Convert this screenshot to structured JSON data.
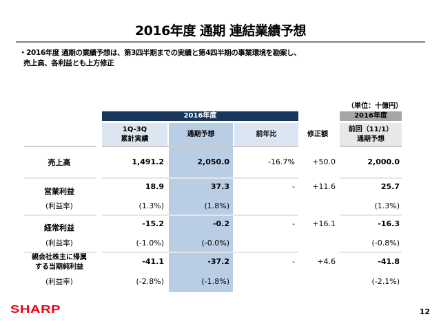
{
  "title": "2016年度 通期 連結業績予想",
  "bullet": {
    "line1": "・2016年度 通期の業績予想は、第3四半期までの実績と第4四半期の事業環境を勘案し、",
    "line2": "売上高、各利益とも上方修正"
  },
  "table": {
    "unit": "（単位：十億円）",
    "group_header": "2016年度",
    "prev_group_header": "2016年度",
    "columns": {
      "q1q3_line1": "1Q-3Q",
      "q1q3_line2": "累計実績",
      "full_year": "通期予想",
      "yoy": "前年比",
      "revision": "修正額",
      "prev_line1": "前回（11/1）",
      "prev_line2": "通期予想"
    },
    "rows": [
      {
        "label": "売上高",
        "q1q3": "1,491.2",
        "full": "2,050.0",
        "yoy": "-16.7%",
        "rev": "+50.0",
        "prev": "2,000.0"
      },
      {
        "label": "営業利益",
        "q1q3": "18.9",
        "full": "37.3",
        "yoy": "-",
        "rev": "+11.6",
        "prev": "25.7",
        "margin_label": "(利益率)",
        "q1q3_m": "(1.3%)",
        "full_m": "(1.8%)",
        "prev_m": "(1.3%)"
      },
      {
        "label": "経常利益",
        "q1q3": "-15.2",
        "full": "-0.2",
        "yoy": "-",
        "rev": "+16.1",
        "prev": "-16.3",
        "margin_label": "(利益率)",
        "q1q3_m": "(-1.0%)",
        "full_m": "(-0.0%)",
        "prev_m": "(-0.8%)"
      },
      {
        "label_line1": "親会社株主に帰属",
        "label_line2": "する当期純利益",
        "q1q3": "-41.1",
        "full": "-37.2",
        "yoy": "-",
        "rev": "+4.6",
        "prev": "-41.8",
        "margin_label": "(利益率)",
        "q1q3_m": "(-2.8%)",
        "full_m": "(-1.8%)",
        "prev_m": "(-2.1%)"
      }
    ]
  },
  "footer": {
    "logo": "SHARP",
    "page": "12"
  },
  "colors": {
    "band": "#17375e",
    "highlight": "#b9cde5",
    "light": "#dce6f2",
    "gray_band": "#a6a6a6",
    "gray_light": "#e8e8e8",
    "logo": "#e60012"
  }
}
